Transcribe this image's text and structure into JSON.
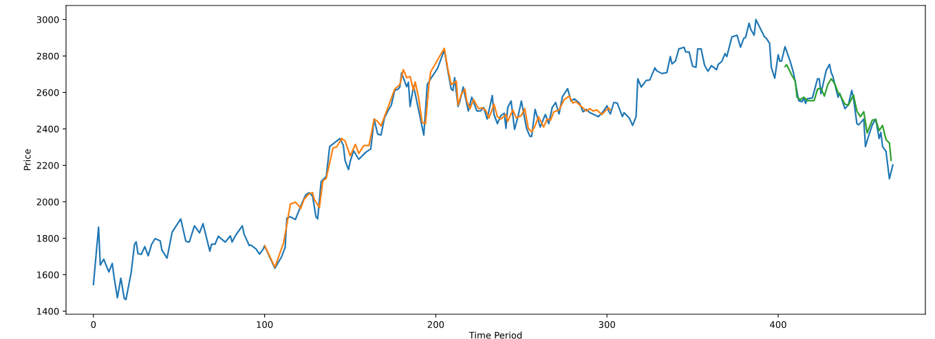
{
  "chart_data": {
    "type": "line",
    "xlabel": "Time Period",
    "ylabel": "Price",
    "xlim": [
      -16,
      486
    ],
    "ylim": [
      1383,
      3077
    ],
    "xticks": [
      0,
      100,
      200,
      300,
      400
    ],
    "yticks": [
      1400,
      1600,
      1800,
      2000,
      2200,
      2400,
      2600,
      2800,
      3000
    ],
    "grid": false,
    "legend": false,
    "marker": "none",
    "line_style": "solid",
    "series": [
      {
        "color": "#1f77b4",
        "x": [
          0,
          3,
          4,
          6,
          9,
          11,
          12,
          14,
          16,
          18,
          19,
          22,
          24,
          25,
          26,
          28,
          30,
          32,
          34,
          36,
          39,
          40,
          43,
          46,
          51,
          54,
          56,
          59,
          62,
          64,
          68,
          69,
          71,
          73,
          77,
          80,
          81,
          83,
          86,
          87,
          88,
          91,
          92,
          95,
          97,
          99,
          100,
          106,
          110,
          112,
          113,
          115,
          118,
          122,
          124,
          126,
          128,
          130,
          131,
          133,
          136,
          138,
          143,
          144,
          146,
          147,
          149,
          150,
          152,
          155,
          159,
          162,
          164,
          166,
          168,
          170,
          172,
          174,
          176,
          178,
          179,
          180,
          183,
          184,
          185,
          187,
          193,
          195,
          197,
          201,
          203,
          205,
          207,
          209,
          210,
          211,
          213,
          214,
          216,
          219,
          221,
          224,
          226,
          228,
          230,
          233,
          234,
          236,
          238,
          240,
          241,
          242,
          244,
          246,
          248,
          250,
          253,
          255,
          256,
          258,
          261,
          264,
          266,
          268,
          270,
          272,
          274,
          277,
          279,
          281,
          284,
          286,
          288,
          290,
          295,
          298,
          300,
          301,
          302,
          304,
          306,
          309,
          310,
          313,
          315,
          317,
          318,
          320,
          323,
          325,
          328,
          329,
          332,
          335,
          337,
          338,
          340,
          342,
          345,
          346,
          348,
          350,
          352,
          353,
          355,
          357,
          359,
          361,
          364,
          365,
          367,
          369,
          370,
          373,
          376,
          378,
          380,
          381,
          383,
          384,
          386,
          387,
          392,
          393,
          395,
          396,
          398,
          400,
          401,
          402,
          404,
          407,
          409,
          412,
          414,
          415,
          416,
          417,
          420,
          423,
          424,
          425,
          428,
          430,
          431,
          432,
          435,
          436,
          439,
          441,
          443,
          444,
          446,
          447,
          450,
          451,
          453,
          455,
          457,
          459,
          460,
          461,
          463,
          465,
          467
        ],
        "values": [
          1546,
          1861,
          1653,
          1685,
          1615,
          1662,
          1590,
          1473,
          1581,
          1470,
          1464,
          1609,
          1767,
          1780,
          1716,
          1712,
          1754,
          1704,
          1767,
          1798,
          1786,
          1735,
          1691,
          1834,
          1906,
          1783,
          1779,
          1868,
          1830,
          1880,
          1729,
          1767,
          1767,
          1811,
          1779,
          1813,
          1779,
          1815,
          1855,
          1868,
          1823,
          1760,
          1763,
          1741,
          1713,
          1738,
          1758,
          1635,
          1700,
          1750,
          1910,
          1918,
          1903,
          1997,
          2038,
          2050,
          2032,
          1918,
          1906,
          2111,
          2139,
          2303,
          2340,
          2347,
          2309,
          2227,
          2177,
          2221,
          2280,
          2233,
          2271,
          2290,
          2454,
          2372,
          2366,
          2460,
          2498,
          2530,
          2611,
          2618,
          2630,
          2707,
          2631,
          2656,
          2523,
          2637,
          2366,
          2643,
          2675,
          2731,
          2782,
          2832,
          2719,
          2618,
          2611,
          2681,
          2523,
          2549,
          2630,
          2498,
          2574,
          2498,
          2498,
          2517,
          2454,
          2583,
          2479,
          2429,
          2473,
          2486,
          2403,
          2517,
          2553,
          2397,
          2467,
          2553,
          2403,
          2359,
          2359,
          2507,
          2410,
          2479,
          2429,
          2517,
          2545,
          2482,
          2577,
          2621,
          2553,
          2565,
          2540,
          2494,
          2507,
          2489,
          2467,
          2498,
          2527,
          2498,
          2482,
          2545,
          2542,
          2467,
          2489,
          2460,
          2419,
          2467,
          2675,
          2630,
          2666,
          2668,
          2735,
          2719,
          2704,
          2709,
          2797,
          2757,
          2772,
          2839,
          2848,
          2822,
          2822,
          2744,
          2738,
          2839,
          2839,
          2750,
          2716,
          2747,
          2725,
          2754,
          2769,
          2813,
          2797,
          2905,
          2914,
          2848,
          2898,
          2902,
          2980,
          2946,
          2914,
          3000,
          2905,
          2898,
          2870,
          2738,
          2678,
          2807,
          2772,
          2772,
          2851,
          2772,
          2706,
          2555,
          2549,
          2570,
          2540,
          2565,
          2570,
          2675,
          2675,
          2593,
          2719,
          2754,
          2709,
          2687,
          2574,
          2595,
          2511,
          2532,
          2611,
          2568,
          2429,
          2422,
          2454,
          2303,
          2366,
          2422,
          2454,
          2347,
          2381,
          2303,
          2277,
          2126,
          2202
        ]
      },
      {
        "color": "#ff7f0e",
        "x": [
          100,
          106,
          111,
          113,
          115,
          118,
          120,
          121,
          123,
          126,
          128,
          129,
          132,
          134,
          136,
          138,
          140,
          142,
          145,
          147,
          150,
          153,
          155,
          158,
          161,
          164,
          166,
          168,
          171,
          173,
          176,
          179,
          181,
          183,
          185,
          187,
          188,
          190,
          192,
          194,
          196,
          197,
          202,
          205,
          207,
          209,
          212,
          213,
          215,
          217,
          218,
          220,
          222,
          225,
          227,
          229,
          231,
          232,
          234,
          236,
          238,
          241,
          242,
          245,
          247,
          250,
          252,
          254,
          256,
          258,
          260,
          263,
          265,
          267,
          269,
          272,
          275,
          278,
          280,
          282,
          285,
          288,
          290,
          292,
          294,
          297,
          300,
          301,
          302
        ],
        "values": [
          1760,
          1641,
          1773,
          1874,
          1987,
          1998,
          1978,
          1962,
          2013,
          2044,
          2050,
          2013,
          1968,
          2114,
          2129,
          2214,
          2296,
          2300,
          2347,
          2334,
          2252,
          2315,
          2265,
          2309,
          2309,
          2454,
          2441,
          2416,
          2492,
          2542,
          2618,
          2643,
          2725,
          2681,
          2687,
          2611,
          2658,
          2568,
          2435,
          2429,
          2643,
          2712,
          2795,
          2842,
          2731,
          2643,
          2662,
          2530,
          2593,
          2618,
          2555,
          2511,
          2561,
          2511,
          2515,
          2504,
          2460,
          2482,
          2536,
          2467,
          2454,
          2479,
          2441,
          2504,
          2460,
          2473,
          2511,
          2403,
          2384,
          2416,
          2467,
          2410,
          2454,
          2448,
          2494,
          2504,
          2561,
          2580,
          2542,
          2549,
          2523,
          2498,
          2511,
          2498,
          2504,
          2479,
          2507,
          2515,
          2504
        ]
      },
      {
        "color": "#2ca02c",
        "x": [
          404,
          405,
          408,
          410,
          411,
          413,
          415,
          417,
          421,
          423,
          425,
          427,
          429,
          431,
          433,
          435,
          436,
          439,
          441,
          444,
          446,
          448,
          450,
          452,
          455,
          457,
          459,
          461,
          463,
          465,
          466
        ],
        "values": [
          2742,
          2752,
          2694,
          2662,
          2574,
          2561,
          2574,
          2555,
          2555,
          2618,
          2624,
          2580,
          2643,
          2675,
          2649,
          2599,
          2590,
          2536,
          2530,
          2586,
          2498,
          2467,
          2494,
          2378,
          2448,
          2451,
          2391,
          2419,
          2341,
          2322,
          2227
        ]
      }
    ]
  }
}
